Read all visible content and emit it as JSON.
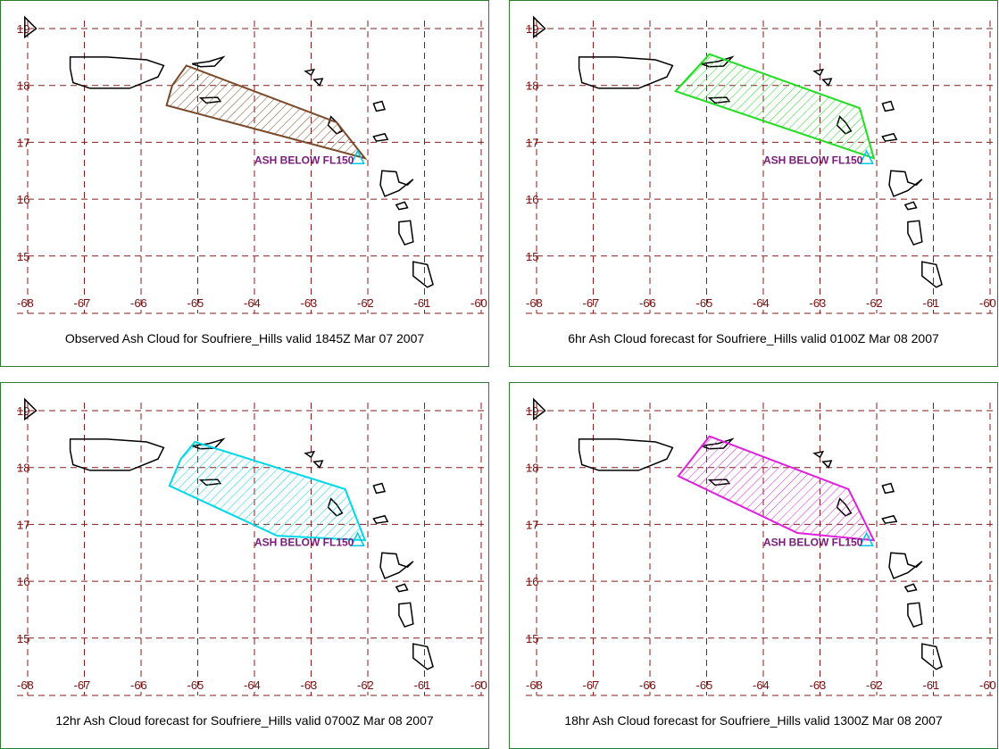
{
  "map": {
    "lon_ticks": [
      -68,
      -67,
      -66,
      -65,
      -64,
      -63,
      -62,
      -61,
      -60
    ],
    "lat_ticks": [
      19,
      18,
      17,
      16,
      15
    ],
    "lon_range": [
      -68,
      -60
    ],
    "lat_range": [
      14.05,
      19.35
    ],
    "grid_color": "#8b1a1a",
    "coast_color": "#000000",
    "volcano": {
      "lon": -62.18,
      "lat": 16.72,
      "marker_color": "#00c8e6"
    },
    "grid": true
  },
  "panels": [
    {
      "caption": "Observed Ash Cloud for Soufriere_Hills valid 1845Z Mar 07 2007",
      "label": "ASH BELOW FL150",
      "color": "#7b4a2a",
      "polygon": [
        [
          -65.2,
          18.35
        ],
        [
          -62.55,
          17.35
        ],
        [
          -62.05,
          16.72
        ],
        [
          -65.55,
          17.65
        ],
        [
          -65.45,
          18.0
        ]
      ]
    },
    {
      "caption": "6hr Ash Cloud forecast for Soufriere_Hills valid 0100Z Mar 08 2007",
      "label": "ASH BELOW FL150",
      "color": "#22dd22",
      "polygon": [
        [
          -64.95,
          18.55
        ],
        [
          -62.3,
          17.6
        ],
        [
          -62.05,
          16.72
        ],
        [
          -65.55,
          17.9
        ]
      ]
    },
    {
      "caption": "12hr Ash Cloud forecast for Soufriere_Hills valid 0700Z Mar 08 2007",
      "label": "ASH BELOW FL150",
      "color": "#00d8e8",
      "polygon": [
        [
          -65.05,
          18.45
        ],
        [
          -62.4,
          17.62
        ],
        [
          -62.05,
          16.72
        ],
        [
          -63.6,
          16.8
        ],
        [
          -65.5,
          17.68
        ],
        [
          -65.3,
          18.15
        ]
      ]
    },
    {
      "caption": "18hr Ash Cloud forecast for Soufriere_Hills valid 1300Z Mar 08 2007",
      "label": "ASH BELOW FL150",
      "color": "#dd22dd",
      "polygon": [
        [
          -64.95,
          18.55
        ],
        [
          -62.5,
          17.62
        ],
        [
          -62.05,
          16.72
        ],
        [
          -63.4,
          16.85
        ],
        [
          -65.5,
          17.85
        ]
      ]
    }
  ]
}
